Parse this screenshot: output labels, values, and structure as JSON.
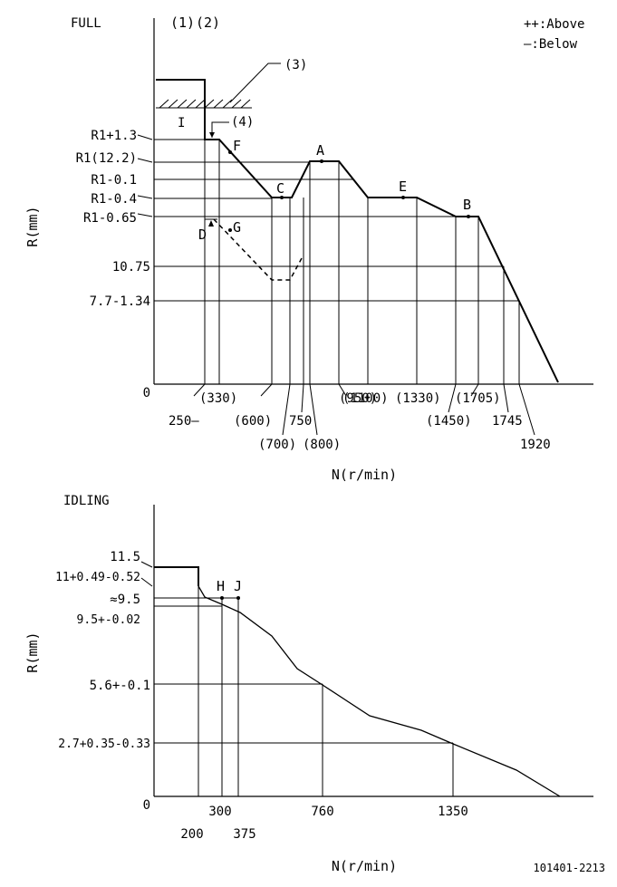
{
  "top": {
    "mode_label": "FULL",
    "col_labels": [
      "(1)",
      "(2)"
    ],
    "legend": {
      "above": "++:Above",
      "below": "—:Below"
    },
    "callouts": {
      "c3": "(3)",
      "c4": "(4)"
    },
    "region_label": "I",
    "y_axis_label": "R(mm)",
    "x_axis_label": "N(r/min)",
    "y_ticks": [
      "R1+1.3",
      "R1(12.2)",
      "R1-0.1",
      "R1-0.4",
      "R1-0.65",
      "10.75",
      "7.7-1.34",
      "0"
    ],
    "x_ticks": [
      "250—",
      "(330)",
      "(600)",
      "(700)",
      "750",
      "(800)",
      "(950)",
      "(1100)",
      "(1330)",
      "(1450)",
      "(1705)",
      "1745",
      "1920"
    ],
    "points": {
      "A": "A",
      "B": "B",
      "C": "C",
      "D": "D",
      "E": "E",
      "F": "F",
      "G": "G"
    }
  },
  "bottom": {
    "mode_label": "IDLING",
    "y_axis_label": "R(mm)",
    "x_axis_label": "N(r/min)",
    "y_ticks": [
      "11.5",
      "11+0.49-0.52",
      "≈9.5",
      "9.5+-0.02",
      "5.6+-0.1",
      "2.7+0.35-0.33",
      "0"
    ],
    "x_ticks": [
      "200",
      "300",
      "375",
      "760",
      "1350"
    ],
    "points": {
      "H": "H",
      "J": "J"
    }
  },
  "drawing_number": "101401-2213"
}
